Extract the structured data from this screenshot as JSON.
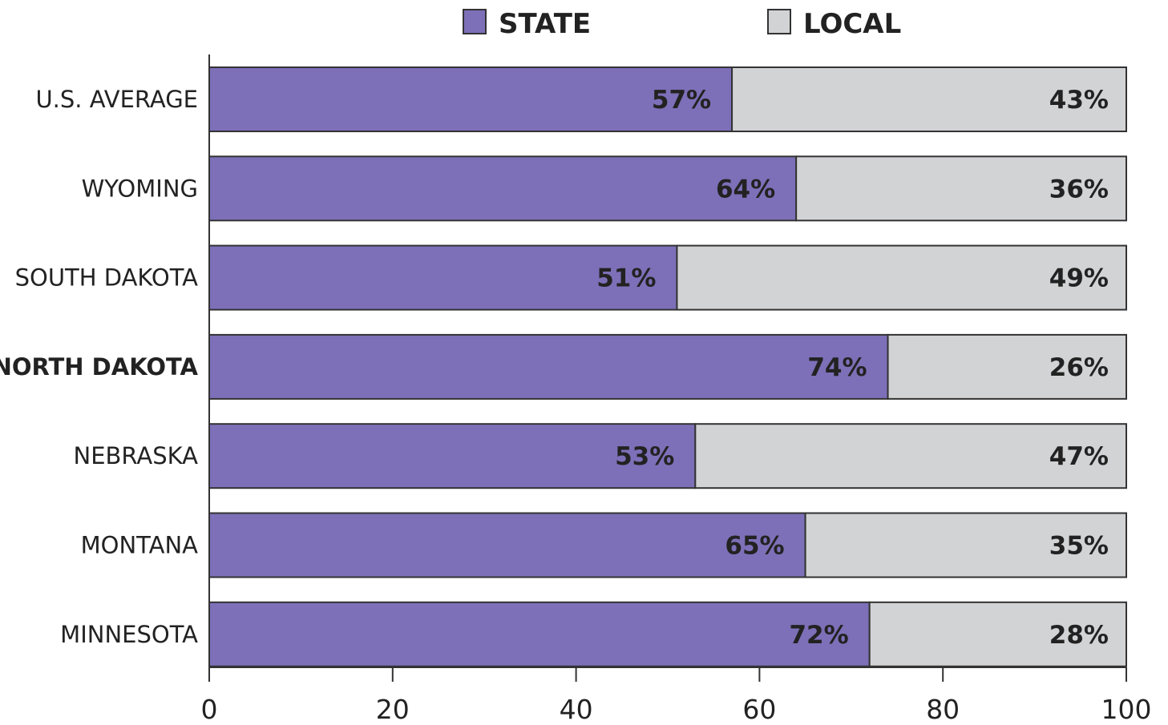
{
  "chart_data": {
    "type": "bar",
    "orientation": "horizontal",
    "stacked": true,
    "categories": [
      "U.S. AVERAGE",
      "WYOMING",
      "SOUTH DAKOTA",
      "NORTH DAKOTA",
      "NEBRASKA",
      "MONTANA",
      "MINNESOTA"
    ],
    "emphasized_category": "NORTH DAKOTA",
    "series": [
      {
        "name": "STATE",
        "values": [
          57,
          64,
          51,
          74,
          53,
          65,
          72
        ],
        "labels": [
          "57%",
          "64%",
          "51%",
          "74%",
          "53%",
          "65%",
          "72%"
        ],
        "color": "#7d70b8"
      },
      {
        "name": "LOCAL",
        "values": [
          43,
          36,
          49,
          26,
          47,
          35,
          28
        ],
        "labels": [
          "43%",
          "36%",
          "49%",
          "26%",
          "47%",
          "35%",
          "28%"
        ],
        "color": "#d2d3d5"
      }
    ],
    "xlim": [
      0,
      100
    ],
    "xticks": [
      "0",
      "20",
      "40",
      "60",
      "80",
      "100"
    ],
    "xlabel": "",
    "ylabel": "",
    "title": "",
    "grid": false,
    "legend_position": "top"
  }
}
